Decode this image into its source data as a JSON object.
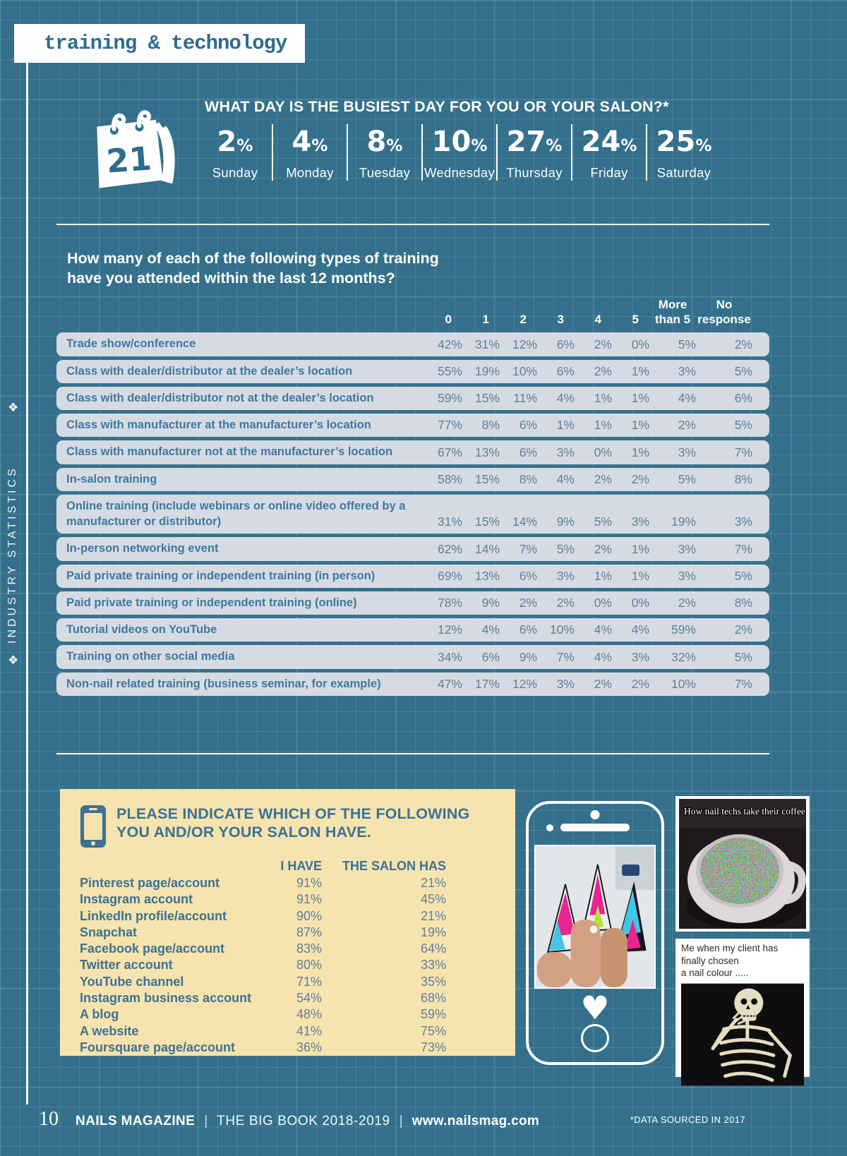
{
  "header": {
    "section_tag": "training & technology"
  },
  "sidebar": {
    "label": "INDUSTRY STATISTICS",
    "diamond": "❖"
  },
  "busiest_day": {
    "title": "WHAT DAY IS THE BUSIEST DAY FOR YOU OR YOUR SALON?*",
    "calendar_number": "21",
    "days": [
      {
        "label": "Sunday",
        "value": "2%"
      },
      {
        "label": "Monday",
        "value": "4%"
      },
      {
        "label": "Tuesday",
        "value": "8%"
      },
      {
        "label": "Wednesday",
        "value": "10%"
      },
      {
        "label": "Thursday",
        "value": "27%"
      },
      {
        "label": "Friday",
        "value": "24%"
      },
      {
        "label": "Saturday",
        "value": "25%"
      }
    ]
  },
  "training_table": {
    "question_line1": "How many of each of the following types of training",
    "question_line2": "have you attended within the last 12 months?",
    "columns": [
      [
        "0"
      ],
      [
        "1"
      ],
      [
        "2"
      ],
      [
        "3"
      ],
      [
        "4"
      ],
      [
        "5"
      ],
      [
        "More",
        "than 5"
      ],
      [
        "No",
        "response"
      ]
    ],
    "rows": [
      {
        "label": "Trade show/conference",
        "values": [
          "42%",
          "31%",
          "12%",
          "6%",
          "2%",
          "0%",
          "5%",
          "2%"
        ]
      },
      {
        "label": "Class with dealer/distributor at the dealer’s location",
        "values": [
          "55%",
          "19%",
          "10%",
          "6%",
          "2%",
          "1%",
          "3%",
          "5%"
        ]
      },
      {
        "label": "Class with dealer/distributor not at the dealer’s location",
        "values": [
          "59%",
          "15%",
          "11%",
          "4%",
          "1%",
          "1%",
          "4%",
          "6%"
        ]
      },
      {
        "label": "Class with manufacturer at the manufacturer’s location",
        "values": [
          "77%",
          "8%",
          "6%",
          "1%",
          "1%",
          "1%",
          "2%",
          "5%"
        ]
      },
      {
        "label": "Class with manufacturer not at the manufacturer’s location",
        "values": [
          "67%",
          "13%",
          "6%",
          "3%",
          "0%",
          "1%",
          "3%",
          "7%"
        ]
      },
      {
        "label": "In-salon training",
        "values": [
          "58%",
          "15%",
          "8%",
          "4%",
          "2%",
          "2%",
          "5%",
          "8%"
        ]
      },
      {
        "label": "Online training (include webinars or online video offered by a manufacturer or distributor)",
        "values": [
          "31%",
          "15%",
          "14%",
          "9%",
          "5%",
          "3%",
          "19%",
          "3%"
        ]
      },
      {
        "label": "In-person networking event",
        "values": [
          "62%",
          "14%",
          "7%",
          "5%",
          "2%",
          "1%",
          "3%",
          "7%"
        ]
      },
      {
        "label": "Paid private training or independent training (in person)",
        "values": [
          "69%",
          "13%",
          "6%",
          "3%",
          "1%",
          "1%",
          "3%",
          "5%"
        ]
      },
      {
        "label": "Paid private training or independent training (online)",
        "values": [
          "78%",
          "9%",
          "2%",
          "2%",
          "0%",
          "0%",
          "2%",
          "8%"
        ]
      },
      {
        "label": "Tutorial videos on YouTube",
        "values": [
          "12%",
          "4%",
          "6%",
          "10%",
          "4%",
          "4%",
          "59%",
          "2%"
        ]
      },
      {
        "label": "Training on other social media",
        "values": [
          "34%",
          "6%",
          "9%",
          "7%",
          "4%",
          "3%",
          "32%",
          "5%"
        ]
      },
      {
        "label": "Non-nail related training (business seminar, for example)",
        "values": [
          "47%",
          "17%",
          "12%",
          "3%",
          "2%",
          "2%",
          "10%",
          "7%"
        ]
      }
    ]
  },
  "salon_have": {
    "title_line1": "PLEASE INDICATE WHICH OF THE FOLLOWING",
    "title_line2": "YOU AND/OR YOUR SALON HAVE.",
    "col_i_have": "I HAVE",
    "col_salon_has": "THE SALON HAS",
    "rows": [
      {
        "label": "Pinterest page/account",
        "i_have": "91%",
        "salon_has": "21%"
      },
      {
        "label": "Instagram account",
        "i_have": "91%",
        "salon_has": "45%"
      },
      {
        "label": "LinkedIn profile/account",
        "i_have": "90%",
        "salon_has": "21%"
      },
      {
        "label": "Snapchat",
        "i_have": "87%",
        "salon_has": "19%"
      },
      {
        "label": "Facebook page/account",
        "i_have": "83%",
        "salon_has": "64%"
      },
      {
        "label": "Twitter account",
        "i_have": "80%",
        "salon_has": "33%"
      },
      {
        "label": "YouTube channel",
        "i_have": "71%",
        "salon_has": "35%"
      },
      {
        "label": "Instagram business account",
        "i_have": "54%",
        "salon_has": "68%"
      },
      {
        "label": "A blog",
        "i_have": "48%",
        "salon_has": "59%"
      },
      {
        "label": "A website",
        "i_have": "41%",
        "salon_has": "75%"
      },
      {
        "label": "Foursquare page/account",
        "i_have": "36%",
        "salon_has": "73%"
      }
    ]
  },
  "memes": {
    "coffee_caption": "How nail techs take their coffee",
    "skeleton_caption_line1": "Me when my client has finally chosen",
    "skeleton_caption_line2": "a nail colour ....."
  },
  "phone": {
    "heart_glyph": "♥"
  },
  "footer": {
    "page_number": "10",
    "magazine": "NAILS MAGAZINE",
    "separator": "|",
    "book": "THE BIG BOOK 2018-2019",
    "website": "www.nailsmag.com",
    "source_note": "*DATA SOURCED IN 2017"
  },
  "colors": {
    "background_teal": "#34708b",
    "row_background": "#d6dbe3",
    "row_label_blue": "#3e78a1",
    "row_value_gray_blue": "#5f7f9a",
    "yellow_box": "#f6e3ae",
    "accent_teal_text": "#3c7293",
    "white": "#ffffff"
  },
  "chart_data": [
    {
      "type": "bar",
      "title": "WHAT DAY IS THE BUSIEST DAY FOR YOU OR YOUR SALON?*",
      "categories": [
        "Sunday",
        "Monday",
        "Tuesday",
        "Wednesday",
        "Thursday",
        "Friday",
        "Saturday"
      ],
      "values": [
        2,
        4,
        8,
        10,
        27,
        24,
        25
      ],
      "unit": "percent"
    },
    {
      "type": "table",
      "title": "How many of each of the following types of training have you attended within the last 12 months?",
      "columns": [
        "0",
        "1",
        "2",
        "3",
        "4",
        "5",
        "More than 5",
        "No response"
      ],
      "rows_source": "training_table.rows"
    },
    {
      "type": "table",
      "title": "PLEASE INDICATE WHICH OF THE FOLLOWING YOU AND/OR YOUR SALON HAVE.",
      "columns": [
        "I HAVE",
        "THE SALON HAS"
      ],
      "rows_source": "salon_have.rows"
    }
  ]
}
